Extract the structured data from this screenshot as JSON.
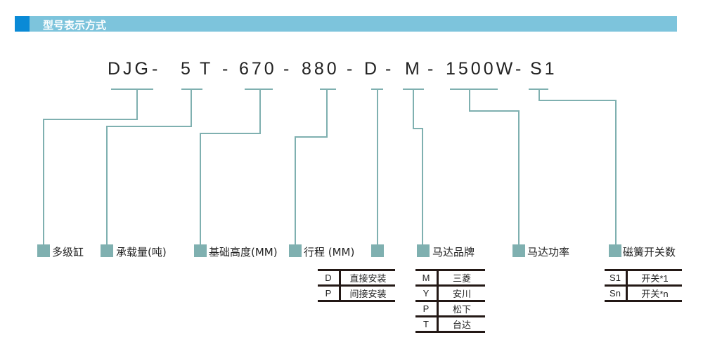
{
  "header": {
    "title": "型号表示方式"
  },
  "model": {
    "segments": [
      "DJG",
      "-",
      "5",
      "T",
      "-",
      "670",
      "-",
      "880",
      "-",
      "D",
      "-",
      "M",
      "-",
      "1500W",
      "-",
      "S1"
    ]
  },
  "labels": [
    "多级缸",
    "承载量(吨)",
    "基础高度(MM)",
    "行程 (MM)",
    "",
    "马达品牌",
    "马达功率",
    "磁簧开关数"
  ],
  "install_table": [
    {
      "code": "D",
      "name": "直接安装"
    },
    {
      "code": "P",
      "name": "间接安装"
    }
  ],
  "motor_table": [
    {
      "code": "M",
      "name": "三菱"
    },
    {
      "code": "Y",
      "name": "安川"
    },
    {
      "code": "P",
      "name": "松下"
    },
    {
      "code": "T",
      "name": "台达"
    }
  ],
  "switch_table": [
    {
      "code": "S1",
      "name": "开关*1"
    },
    {
      "code": "Sn",
      "name": "开关*n"
    }
  ],
  "colors": {
    "line": "#7fb0b0",
    "header": "#7dc4dc",
    "header_accent": "#0a8ad6"
  }
}
